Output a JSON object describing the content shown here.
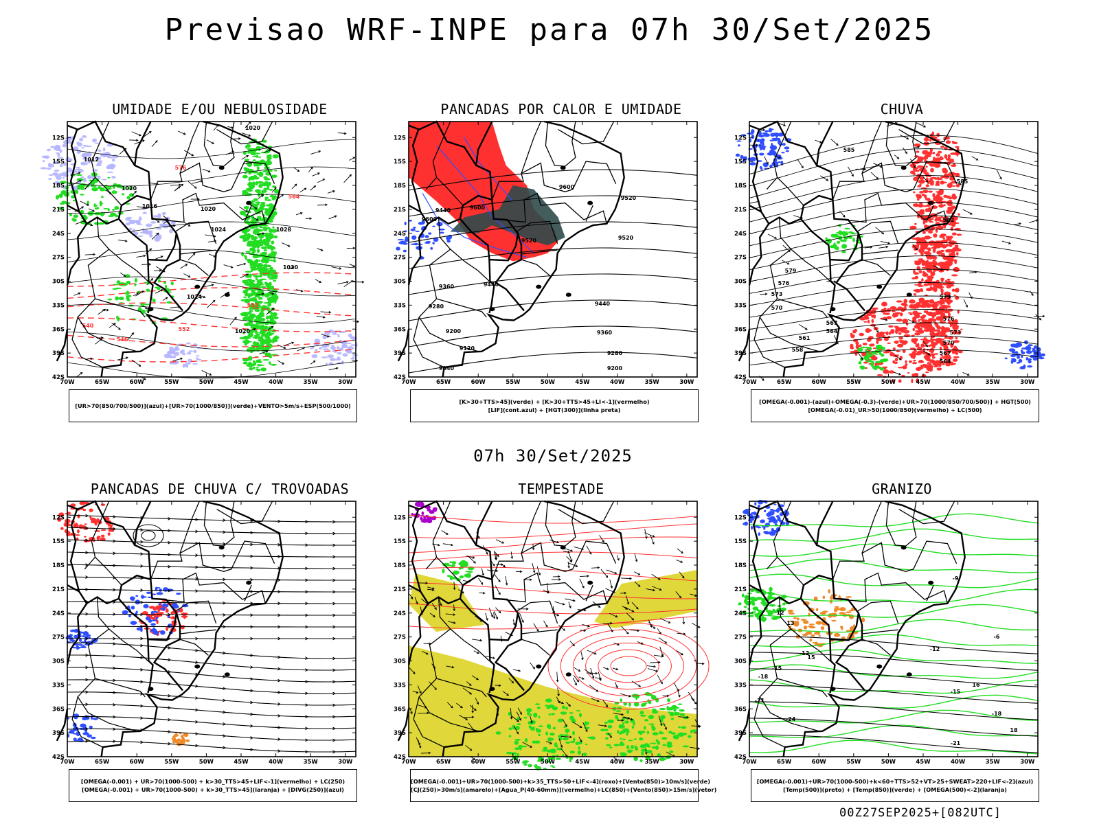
{
  "title": "Previsao WRF-INPE  para 07h 30/Set/2025",
  "mid_date": "07h 30/Set/2025",
  "footer": "00Z27SEP2025+[082UTC]",
  "axes": {
    "lat_labels": [
      "12S",
      "15S",
      "18S",
      "21S",
      "24S",
      "27S",
      "30S",
      "33S",
      "36S",
      "39S",
      "42S"
    ],
    "lon_labels": [
      "70W",
      "65W",
      "60W",
      "55W",
      "50W",
      "45W",
      "40W",
      "35W",
      "30W"
    ]
  },
  "colors": {
    "blue": "#2f4fff",
    "green": "#22dd22",
    "red": "#ff3030",
    "lavender": "#b4b4ff",
    "darkteal": "#2f4a4a",
    "yellow": "#e0d83a",
    "purple": "#aa00cc",
    "orange": "#ee8a2a",
    "black": "#000000"
  },
  "panels": [
    {
      "title": "UMIDADE E/OU NEBULOSIDADE",
      "legend": [
        "[UR>70(850/700/500)](azul)+[UR>70(1000/850)](verde)+VENTO>5m/s+ESP(500/1000)"
      ],
      "contour_labels": [
        "1020",
        "1012",
        "1020",
        "1016",
        "1020",
        "1024",
        "1028",
        "1020",
        "1024",
        "1020",
        "576",
        "564",
        "558",
        "552",
        "546",
        "540"
      ]
    },
    {
      "title": "PANCADAS POR CALOR E UMIDADE",
      "legend": [
        "[K>30+TTS>45](verde)  +  [K>30+TTS>45+LI<-1](vermelho)",
        "[LIF](cont.azul)  +  [HGT(300)](linha preta)"
      ],
      "contour_labels": [
        "9600",
        "9520",
        "9600",
        "9440",
        "9600",
        "9520",
        "9520",
        "9440",
        "9360",
        "9280",
        "9200",
        "9120",
        "9040",
        "9440",
        "9360",
        "9280",
        "9200"
      ]
    },
    {
      "title": "CHUVA",
      "legend": [
        "[OMEGA(-0.001)-(azul)+OMEGA(-0.3)-(verde)+UR>70(1000/850/700/500)]  +  HGT(500)",
        "[OMEGA(-0.01)_UR>50(1000/850)(vermelho) + LC(500)"
      ],
      "contour_labels": [
        "585",
        "585",
        "582",
        "579",
        "576",
        "573",
        "570",
        "567",
        "564",
        "561",
        "558",
        "579",
        "576",
        "573",
        "570",
        "567",
        "564"
      ]
    },
    {
      "title": "PANCADAS DE CHUVA C/ TROVOADAS",
      "legend": [
        "[OMEGA(-0.001)  +  UR>70(1000-500)  +  k>30_TTS>45+LIF<-1](vermelho)  +  LC(250)",
        "[OMEGA(-0.001)  +  UR>70(1000-500)  +  k>30_TTS>45](laranja)  +  [DIVG(250)](azul)"
      ],
      "contour_labels": []
    },
    {
      "title": "TEMPESTADE",
      "legend": [
        "[OMEGA(-0.001)+UR>70(1000-500)+k>35_TTS>50+LIF<-4](roxo)+[Vento(850)>10m/s](verde)",
        "[CJ(250)>30m/s](amarelo)+[Agua_P(40-60mm)](vermelho)+LC(850)+[Vento(850)>15m/s](vetor)"
      ],
      "contour_labels": []
    },
    {
      "title": "GRANIZO",
      "legend": [
        "[OMEGA(-0.001)+UR>70(1000-500)+k<60+TTS>52+VT>25+SWEAT>220+LIF<-2](azul)",
        "[Temp(500)](preto)  +  [Temp(850)](verde)  +  [OMEGA(500)<-2](laranja)"
      ],
      "contour_labels": [
        "-12",
        "-15",
        "-18",
        "-21",
        "-24",
        "-12",
        "-15",
        "-18",
        "-21",
        "12",
        "13",
        "15",
        "16",
        "18",
        "-9",
        "-6"
      ]
    }
  ]
}
